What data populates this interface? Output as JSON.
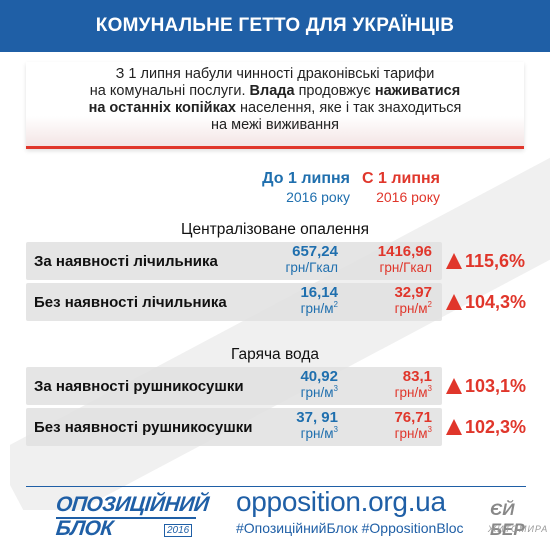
{
  "header": {
    "title": "КОМУНАЛЬНЕ ГЕТТО ДЛЯ УКРАЇНЦІВ"
  },
  "intro": {
    "line1": "З 1 липня набули чинності драконівські тарифи",
    "line2_plain": "на комунальні послуги. ",
    "line2_bold": "Влада",
    "line2_plain2": " продовжує ",
    "line2_bold2": "наживатися",
    "line3_bold": "на останніх копійках",
    "line3_plain": " населення, яке і так знаходиться",
    "line4": "на межі виживання"
  },
  "columns": {
    "before": {
      "label": "До 1 липня",
      "sub": "2016 року"
    },
    "after": {
      "label": "С 1 липня",
      "sub": "2016 року"
    }
  },
  "sections": [
    {
      "title": "Централізоване опалення",
      "rows": [
        {
          "label": "За наявності лічильника",
          "before": "657,24",
          "before_unit": "грн/Гкал",
          "before_sup": "",
          "after": "1416,96",
          "after_unit": "грн/Гкал",
          "after_sup": "",
          "change": "115,6%"
        },
        {
          "label": "Без наявності лічильника",
          "before": "16,14",
          "before_unit": "грн/м",
          "before_sup": "2",
          "after": "32,97",
          "after_unit": "грн/м",
          "after_sup": "2",
          "change": "104,3%"
        }
      ]
    },
    {
      "title": "Гаряча вода",
      "rows": [
        {
          "label": "За наявності рушникосушки",
          "before": "40,92",
          "before_unit": "грн/м",
          "before_sup": "3",
          "after": "83,1",
          "after_unit": "грн/м",
          "after_sup": "3",
          "change": "103,1%"
        },
        {
          "label": "Без наявності рушникосушки",
          "before": "37, 91",
          "before_unit": "грн/м",
          "before_sup": "3",
          "after": "76,71",
          "after_unit": "грн/м",
          "after_sup": "3",
          "change": "102,3%"
        }
      ]
    }
  ],
  "footer": {
    "logo_line1": "ОПОЗИЦІЙНИЙ",
    "logo_line2": "БЛОК",
    "logo_year": "2016",
    "site": "opposition.org.ua",
    "hashtags": "#ОпозиційнийБлок #OppositionBloc",
    "stamp_line1": "ЄЙ БЕР",
    "stamp_line2": "ЖИТОМИРА"
  },
  "colors": {
    "title_bar": "#1f5fa6",
    "before": "#1f6fae",
    "after": "#e0362b",
    "row_bg": "#e0e0e0"
  },
  "icons": {
    "increase": "up-triangle-icon",
    "watermark": "watermark-shape"
  }
}
